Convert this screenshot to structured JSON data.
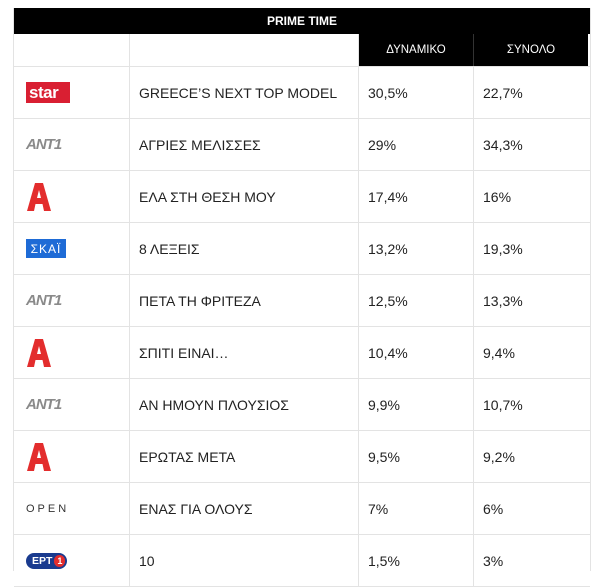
{
  "table": {
    "title": "PRIME TIME",
    "headers": {
      "dynamiko": "ΔΥΝΑΜΙΚΟ",
      "synolo": "ΣΥΝΟΛΟ"
    },
    "rows": [
      {
        "channel": "star",
        "logo_text": "star",
        "show": "GREECE’S NEXT TOP MODEL",
        "dynamiko": "30,5%",
        "synolo": "22,7%"
      },
      {
        "channel": "ant1",
        "logo_text": "ANT1",
        "show": "ΑΓΡΙΕΣ ΜΕΛΙΣΣΕΣ",
        "dynamiko": "29%",
        "synolo": "34,3%"
      },
      {
        "channel": "alpha",
        "logo_text": "",
        "show": "ΕΛΑ ΣΤΗ ΘΕΣΗ ΜΟΥ",
        "dynamiko": "17,4%",
        "synolo": "16%"
      },
      {
        "channel": "skai",
        "logo_text": "ΣΚΑΪ",
        "show": "8 ΛΕΞΕΙΣ",
        "dynamiko": "13,2%",
        "synolo": "19,3%"
      },
      {
        "channel": "ant1",
        "logo_text": "ANT1",
        "show": "ΠΕΤΑ ΤΗ ΦΡΙΤΕΖΑ",
        "dynamiko": "12,5%",
        "synolo": "13,3%"
      },
      {
        "channel": "alpha",
        "logo_text": "",
        "show": "ΣΠΙΤΙ ΕΙΝΑΙ…",
        "dynamiko": "10,4%",
        "synolo": "9,4%"
      },
      {
        "channel": "ant1",
        "logo_text": "ANT1",
        "show": "ΑΝ ΗΜΟΥΝ ΠΛΟΥΣΙΟΣ",
        "dynamiko": "9,9%",
        "synolo": "10,7%"
      },
      {
        "channel": "alpha",
        "logo_text": "",
        "show": "ΕΡΩΤΑΣ ΜΕΤΑ",
        "dynamiko": "9,5%",
        "synolo": "9,2%"
      },
      {
        "channel": "open",
        "logo_text": "OPEN",
        "show": "ΕΝΑΣ ΓΙΑ ΟΛΟΥΣ",
        "dynamiko": "7%",
        "synolo": "6%"
      },
      {
        "channel": "ert1",
        "logo_text": "ΕΡΤ 1",
        "show": "10",
        "dynamiko": "1,5%",
        "synolo": "3%"
      }
    ]
  },
  "colors": {
    "star": "#d91f32",
    "alpha": "#e32d2d",
    "skai": "#1e6bd6",
    "ert": "#1a3b8f",
    "header_bg": "#000000"
  }
}
